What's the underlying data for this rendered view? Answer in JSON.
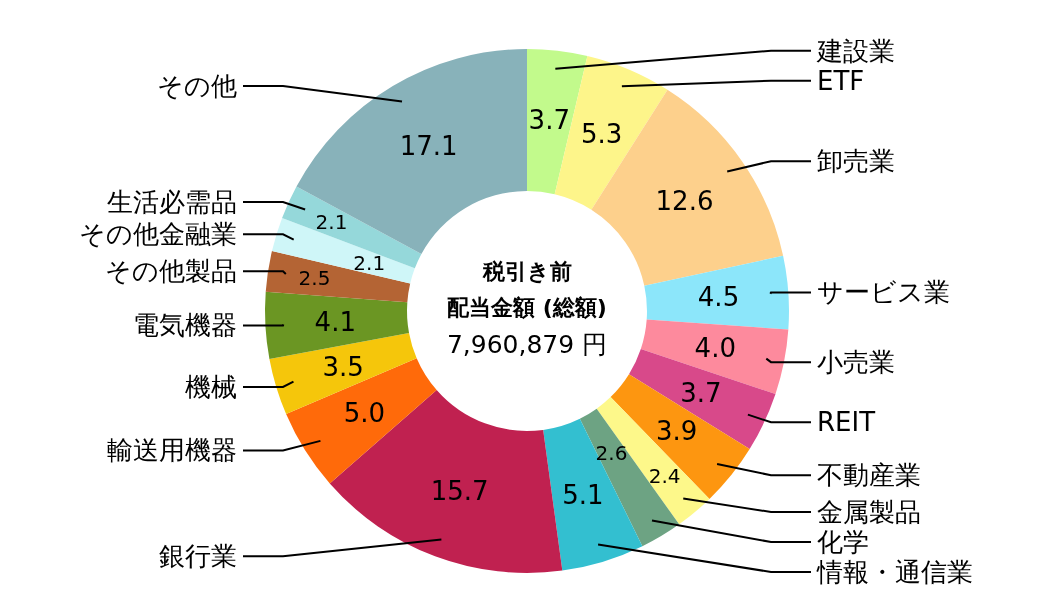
{
  "chart_data": {
    "type": "donut",
    "title": "税引き前",
    "subtitle": "配当金額 (総額)",
    "annotations": [
      "7,960,879 円"
    ],
    "value_labels": [
      "3.7",
      "5.3",
      "12.6",
      "4.5",
      "4.0",
      "3.7",
      "3.9",
      "2.4",
      "2.6",
      "5.1",
      "15.7",
      "5.0",
      "3.5",
      "4.1",
      "2.5",
      "2.1",
      "2.1",
      "17.1"
    ],
    "categories": [
      "建設業",
      "ETF",
      "卸売業",
      "サービス業",
      "小売業",
      "REIT",
      "不動産業",
      "金属製品",
      "化学",
      "情報・通信業",
      "銀行業",
      "輸送用機器",
      "機械",
      "電気機器",
      "その他製品",
      "その他金融業",
      "生活必需品",
      "その他"
    ],
    "values": [
      3.7,
      5.3,
      12.6,
      4.5,
      4.0,
      3.7,
      3.9,
      2.4,
      2.6,
      5.1,
      15.7,
      5.0,
      3.5,
      4.1,
      2.5,
      2.1,
      2.1,
      17.1
    ],
    "colors": [
      "#c2fa8c",
      "#fdf58a",
      "#fdd08c",
      "#8ce6fa",
      "#fd8a9d",
      "#d8498a",
      "#fd9610",
      "#fdf88a",
      "#6da383",
      "#33bfd0",
      "#c02150",
      "#ff6a0a",
      "#f5c60b",
      "#6b9623",
      "#b46434",
      "#cff6f8",
      "#95d8da",
      "#88b2ba"
    ]
  }
}
